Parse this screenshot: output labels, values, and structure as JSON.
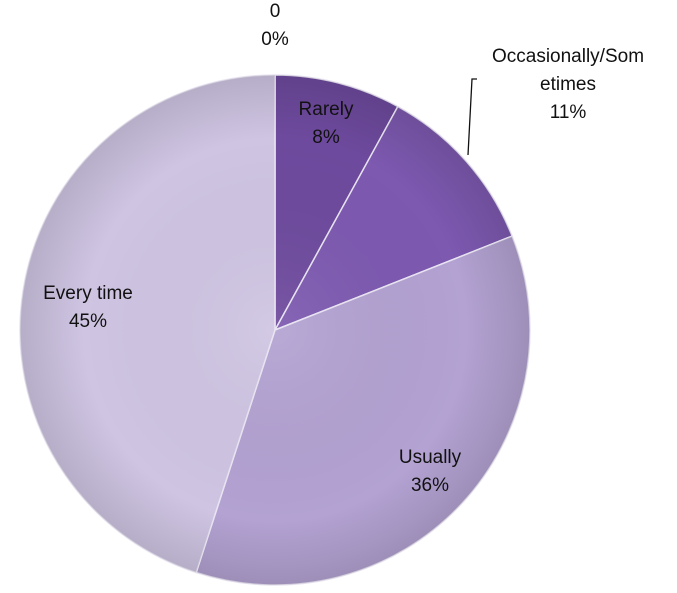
{
  "chart_data": {
    "type": "pie",
    "categories": [
      "0",
      "Rarely",
      "Occasionally/Sometimes",
      "Usually",
      "Every time"
    ],
    "values": [
      0,
      8,
      11,
      36,
      45
    ],
    "unit": "%",
    "slice_labels": [
      {
        "lines": [
          "0",
          "0%"
        ]
      },
      {
        "lines": [
          "Rarely",
          "8%"
        ]
      },
      {
        "lines": [
          "Occasionally/Som",
          "etimes",
          "11%"
        ]
      },
      {
        "lines": [
          "Usually",
          "36%"
        ]
      },
      {
        "lines": [
          "Every time",
          "45%"
        ]
      }
    ],
    "colors": [
      "#5b3a86",
      "#6e4a9e",
      "#7d59b0",
      "#b3a2d2",
      "#cfc5e3"
    ],
    "start_angle_deg": 0,
    "direction": "clockwise",
    "legend": "none"
  }
}
